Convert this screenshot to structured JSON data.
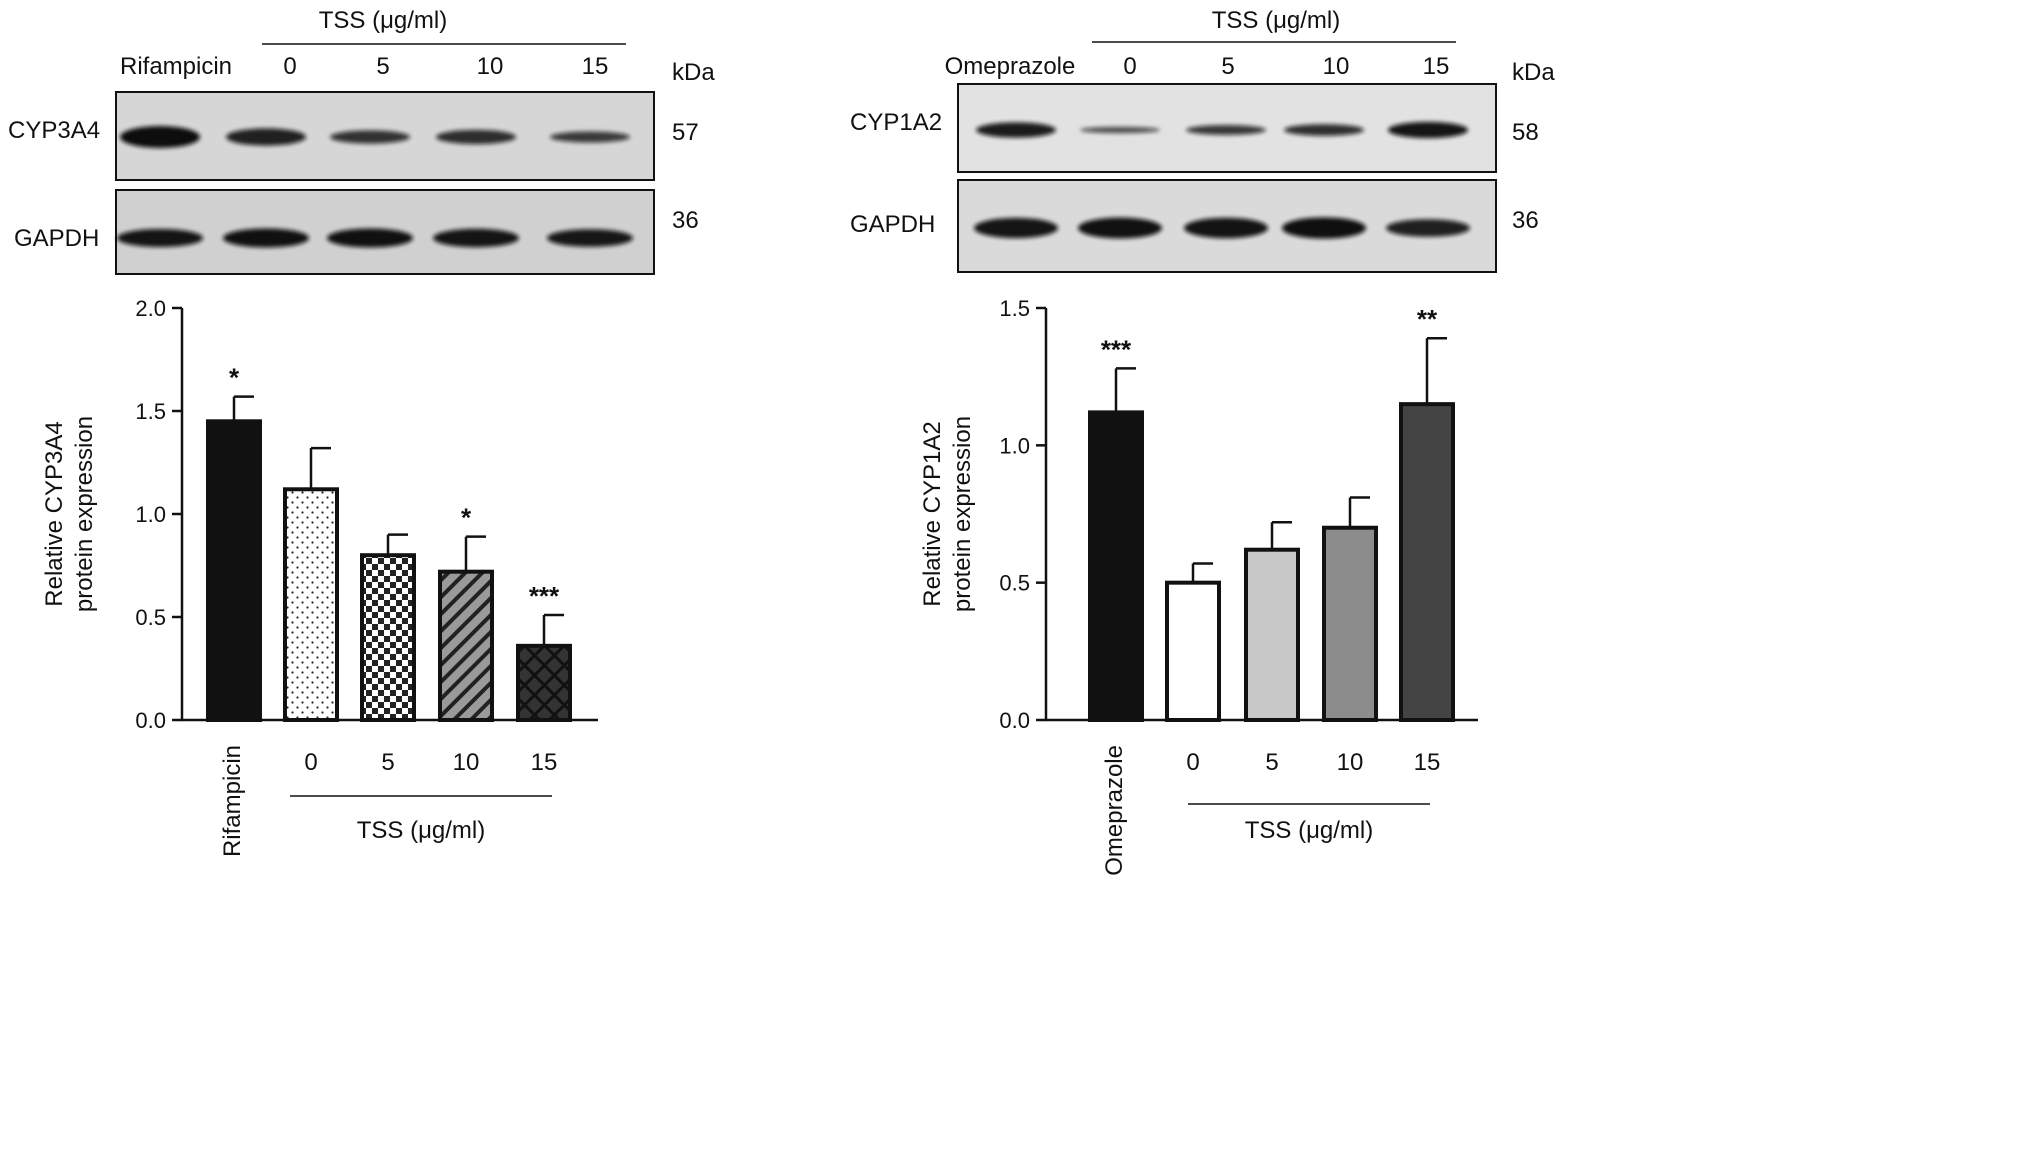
{
  "colors": {
    "background": "#ffffff",
    "ink": "#111111",
    "blot_bg": "#d4d4d4",
    "band": "#101010"
  },
  "blots": [
    {
      "treatment_label": "Rifampicin",
      "group_label": "TSS (μg/ml)",
      "lane_labels": [
        "0",
        "5",
        "10",
        "15"
      ],
      "unit_label": "kDa",
      "rows": [
        {
          "protein": "CYP3A4",
          "kda": "57",
          "band_intensity": [
            1.0,
            0.78,
            0.6,
            0.65,
            0.5
          ]
        },
        {
          "protein": "GAPDH",
          "kda": "36",
          "band_intensity": [
            0.9,
            0.95,
            0.95,
            0.92,
            0.88
          ]
        }
      ]
    },
    {
      "treatment_label": "Omeprazole",
      "group_label": "TSS (μg/ml)",
      "lane_labels": [
        "0",
        "5",
        "10",
        "15"
      ],
      "unit_label": "kDa",
      "rows": [
        {
          "protein": "CYP1A2",
          "kda": "58",
          "band_intensity": [
            0.85,
            0.35,
            0.55,
            0.65,
            0.9
          ]
        },
        {
          "protein": "GAPDH",
          "kda": "36",
          "band_intensity": [
            0.92,
            0.95,
            0.93,
            0.97,
            0.8
          ]
        }
      ]
    }
  ],
  "chart_data": [
    {
      "type": "bar",
      "categories": [
        "Rifampicin",
        "0",
        "5",
        "10",
        "15"
      ],
      "values": [
        1.45,
        1.12,
        0.8,
        0.72,
        0.36
      ],
      "errors": [
        0.12,
        0.2,
        0.1,
        0.17,
        0.15
      ],
      "significance": [
        "*",
        "",
        "",
        "*",
        "***"
      ],
      "patterns": [
        "solid",
        "dots",
        "checker",
        "diagonal",
        "crosshatch"
      ],
      "ylabel": "Relative CYP3A4 protein expression",
      "ylabel_lines": [
        "Relative CYP3A4",
        "protein expression"
      ],
      "group_label": "TSS (μg/ml)",
      "ylim": [
        0,
        2.0
      ],
      "yticks": [
        "0.0",
        "0.5",
        "1.0",
        "1.5",
        "2.0"
      ],
      "grid": false
    },
    {
      "type": "bar",
      "categories": [
        "Omeprazole",
        "0",
        "5",
        "10",
        "15"
      ],
      "values": [
        1.12,
        0.5,
        0.62,
        0.7,
        1.15
      ],
      "errors": [
        0.16,
        0.07,
        0.1,
        0.11,
        0.24
      ],
      "significance": [
        "***",
        "",
        "",
        "",
        "**"
      ],
      "fills": [
        "#111111",
        "#ffffff",
        "#c8c8c8",
        "#8c8c8c",
        "#444444"
      ],
      "ylabel": "Relative CYP1A2 protein expression",
      "ylabel_lines": [
        "Relative CYP1A2",
        "protein expression"
      ],
      "group_label": "TSS (μg/ml)",
      "ylim": [
        0,
        1.5
      ],
      "yticks": [
        "0.0",
        "0.5",
        "1.0",
        "1.5"
      ],
      "grid": false
    }
  ]
}
